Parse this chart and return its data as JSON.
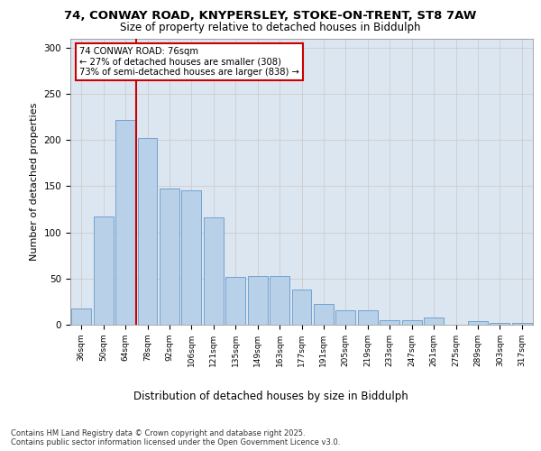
{
  "title_line1": "74, CONWAY ROAD, KNYPERSLEY, STOKE-ON-TRENT, ST8 7AW",
  "title_line2": "Size of property relative to detached houses in Biddulph",
  "xlabel": "Distribution of detached houses by size in Biddulph",
  "ylabel": "Number of detached properties",
  "categories": [
    "36sqm",
    "50sqm",
    "64sqm",
    "78sqm",
    "92sqm",
    "106sqm",
    "121sqm",
    "135sqm",
    "149sqm",
    "163sqm",
    "177sqm",
    "191sqm",
    "205sqm",
    "219sqm",
    "233sqm",
    "247sqm",
    "261sqm",
    "275sqm",
    "289sqm",
    "303sqm",
    "317sqm"
  ],
  "values": [
    18,
    117,
    222,
    202,
    147,
    145,
    116,
    52,
    53,
    53,
    38,
    22,
    16,
    16,
    5,
    5,
    8,
    0,
    4,
    2,
    2
  ],
  "bar_color": "#b8d0e8",
  "bar_edge_color": "#6699cc",
  "grid_color": "#cccccc",
  "background_color": "#dce6f1",
  "vline_color": "#cc0000",
  "annotation_text": "74 CONWAY ROAD: 76sqm\n← 27% of detached houses are smaller (308)\n73% of semi-detached houses are larger (838) →",
  "annotation_box_color": "#ffffff",
  "annotation_box_edge": "#cc0000",
  "footer_text": "Contains HM Land Registry data © Crown copyright and database right 2025.\nContains public sector information licensed under the Open Government Licence v3.0.",
  "ylim": [
    0,
    310
  ],
  "yticks": [
    0,
    50,
    100,
    150,
    200,
    250,
    300
  ]
}
